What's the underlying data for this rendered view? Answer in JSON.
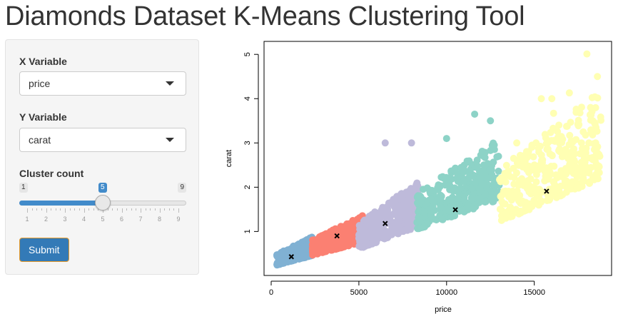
{
  "app": {
    "title": "Diamonds Dataset K-Means Clustering Tool"
  },
  "sidebar": {
    "x_variable": {
      "label": "X Variable",
      "value": "price",
      "icon": "caret-down-icon"
    },
    "y_variable": {
      "label": "Y Variable",
      "value": "carat",
      "icon": "caret-down-icon"
    },
    "cluster_count": {
      "label": "Cluster count",
      "min": 1,
      "max": 9,
      "value": 5,
      "ticks": [
        1,
        2,
        3,
        4,
        5,
        6,
        7,
        8,
        9
      ]
    },
    "submit_label": "Submit"
  },
  "chart_data": {
    "type": "scatter",
    "xlabel": "price",
    "ylabel": "carat",
    "xlim": [
      0,
      19000
    ],
    "ylim": [
      0.2,
      5.1
    ],
    "x_ticks": [
      "0",
      "5000",
      "10000",
      "15000"
    ],
    "y_ticks": [
      "1",
      "2",
      "3",
      "4",
      "5"
    ],
    "x_tick_values": [
      0,
      5000,
      10000,
      15000
    ],
    "y_tick_values": [
      1,
      2,
      3,
      4,
      5
    ],
    "grid": false,
    "legend": "none",
    "clusters": [
      {
        "color": "#80b1d3",
        "price_range": [
          326,
          2350
        ],
        "carat_range": [
          0.2,
          1.05
        ],
        "center": [
          1150,
          0.43
        ]
      },
      {
        "color": "#fb8072",
        "price_range": [
          2350,
          5200
        ],
        "carat_range": [
          0.4,
          1.6
        ],
        "center": [
          3750,
          0.9
        ]
      },
      {
        "color": "#bebada",
        "price_range": [
          5000,
          8400
        ],
        "carat_range": [
          0.5,
          2.55
        ],
        "center": [
          6500,
          1.18
        ]
      },
      {
        "color": "#8dd3c7",
        "price_range": [
          8300,
          13000
        ],
        "carat_range": [
          0.9,
          3.65
        ],
        "center": [
          10500,
          1.49
        ]
      },
      {
        "color": "#ffffb3",
        "price_range": [
          13000,
          18823
        ],
        "carat_range": [
          1.0,
          5.01
        ],
        "center": [
          15700,
          1.91
        ]
      }
    ],
    "center_marker": "x",
    "outliers": [
      {
        "x": 6500,
        "y": 3.0,
        "cluster": 2
      },
      {
        "x": 8000,
        "y": 3.0,
        "cluster": 2
      },
      {
        "x": 11600,
        "y": 3.65,
        "cluster": 3
      },
      {
        "x": 12500,
        "y": 3.5,
        "cluster": 3
      },
      {
        "x": 10000,
        "y": 3.1,
        "cluster": 3
      },
      {
        "x": 18000,
        "y": 5.01,
        "cluster": 4
      },
      {
        "x": 18600,
        "y": 4.5,
        "cluster": 4
      },
      {
        "x": 15400,
        "y": 4.0,
        "cluster": 4
      },
      {
        "x": 16000,
        "y": 4.0,
        "cluster": 4
      },
      {
        "x": 17000,
        "y": 4.13,
        "cluster": 4
      },
      {
        "x": 16100,
        "y": 3.67,
        "cluster": 4
      },
      {
        "x": 18800,
        "y": 3.51,
        "cluster": 4
      },
      {
        "x": 14000,
        "y": 3.0,
        "cluster": 4
      },
      {
        "x": 15100,
        "y": 3.0,
        "cluster": 4
      },
      {
        "x": 18500,
        "y": 3.0,
        "cluster": 4
      }
    ]
  }
}
